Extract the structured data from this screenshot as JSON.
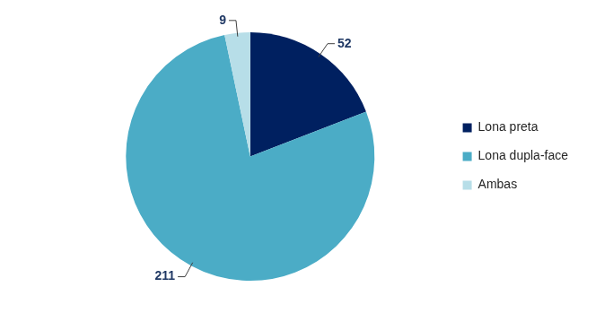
{
  "chart_data": {
    "type": "pie",
    "categories": [
      "Lona preta",
      "Lona dupla-face",
      "Ambas"
    ],
    "values": [
      52,
      211,
      9
    ],
    "colors": [
      "#002060",
      "#4BACC6",
      "#B7DEE8"
    ],
    "legend": "right",
    "data_labels": true
  }
}
